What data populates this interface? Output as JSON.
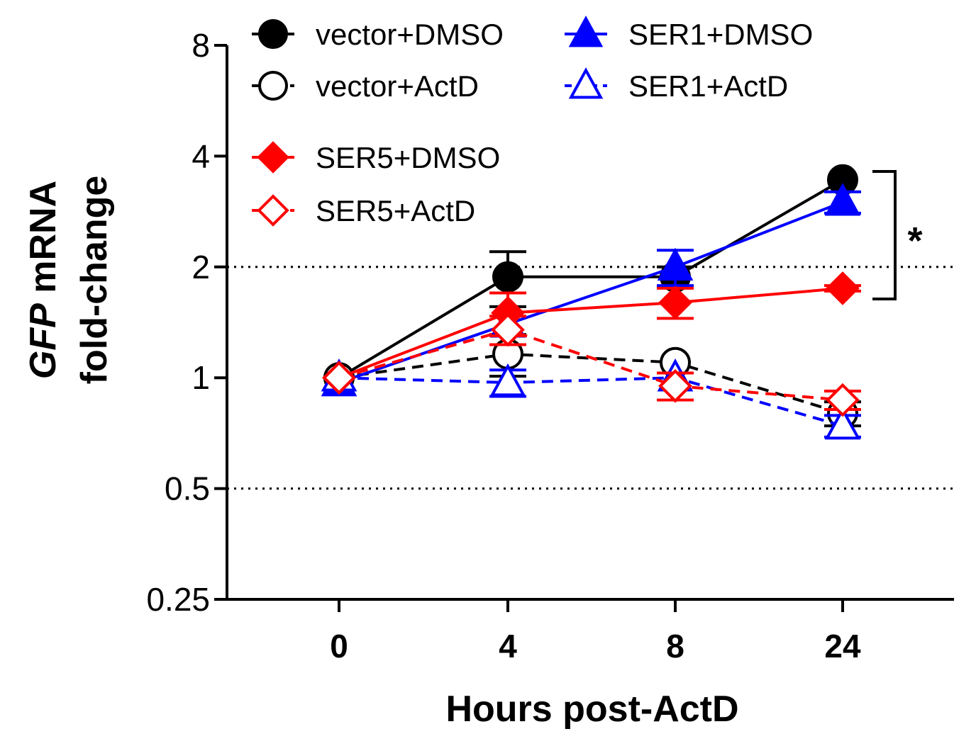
{
  "chart_data": {
    "type": "line",
    "x_categories": [
      "0",
      "4",
      "8",
      "24"
    ],
    "xlabel": "Hours post-ActD",
    "ylabel_italic": "GFP",
    "ylabel_rest": " mRNA",
    "ylabel_line2": "fold-change",
    "y_scale": "log2",
    "ylim": [
      0.25,
      8
    ],
    "y_ticks": [
      0.25,
      0.5,
      1,
      2,
      4,
      8
    ],
    "y_tick_labels": [
      "0.25",
      "0.5",
      "1",
      "2",
      "4",
      "8"
    ],
    "reference_lines": [
      2,
      0.5
    ],
    "series": [
      {
        "name": "vector+DMSO",
        "color": "#000000",
        "marker": "circle",
        "filled": true,
        "dashed": false,
        "values": [
          1.0,
          1.88,
          1.88,
          3.45
        ],
        "err": [
          0,
          0.32,
          0.12,
          0
        ]
      },
      {
        "name": "vector+ActD",
        "color": "#000000",
        "marker": "circle",
        "filled": false,
        "dashed": true,
        "values": [
          1.0,
          1.16,
          1.1,
          0.8
        ],
        "err": [
          0,
          0.15,
          0,
          0.06
        ]
      },
      {
        "name": "SER1+DMSO",
        "color": "#0000ff",
        "marker": "triangle",
        "filled": true,
        "dashed": false,
        "values": [
          0.97,
          1.4,
          2.0,
          3.0
        ],
        "err": [
          0,
          0,
          0.22,
          0.2
        ]
      },
      {
        "name": "SER1+ActD",
        "color": "#0000ff",
        "marker": "triangle",
        "filled": false,
        "dashed": true,
        "values": [
          1.0,
          0.97,
          1.0,
          0.74
        ],
        "err": [
          0,
          0.08,
          0,
          0.05
        ]
      },
      {
        "name": "SER5+DMSO",
        "color": "#ff0000",
        "marker": "diamond",
        "filled": true,
        "dashed": false,
        "values": [
          1.0,
          1.5,
          1.6,
          1.75
        ],
        "err": [
          0,
          0.2,
          0.15,
          0.03
        ]
      },
      {
        "name": "SER5+ActD",
        "color": "#ff0000",
        "marker": "diamond",
        "filled": false,
        "dashed": true,
        "values": [
          1.0,
          1.35,
          0.95,
          0.87
        ],
        "err": [
          0,
          0.12,
          0.08,
          0.05
        ]
      }
    ],
    "legend": {
      "placement": "top",
      "items": [
        "vector+DMSO",
        "SER1+DMSO",
        "vector+ActD",
        "SER1+ActD",
        "SER5+DMSO",
        "SER5+ActD"
      ]
    },
    "significance": {
      "label": "*",
      "between": [
        "vector+DMSO",
        "SER5+DMSO"
      ],
      "at_x": "24"
    }
  }
}
